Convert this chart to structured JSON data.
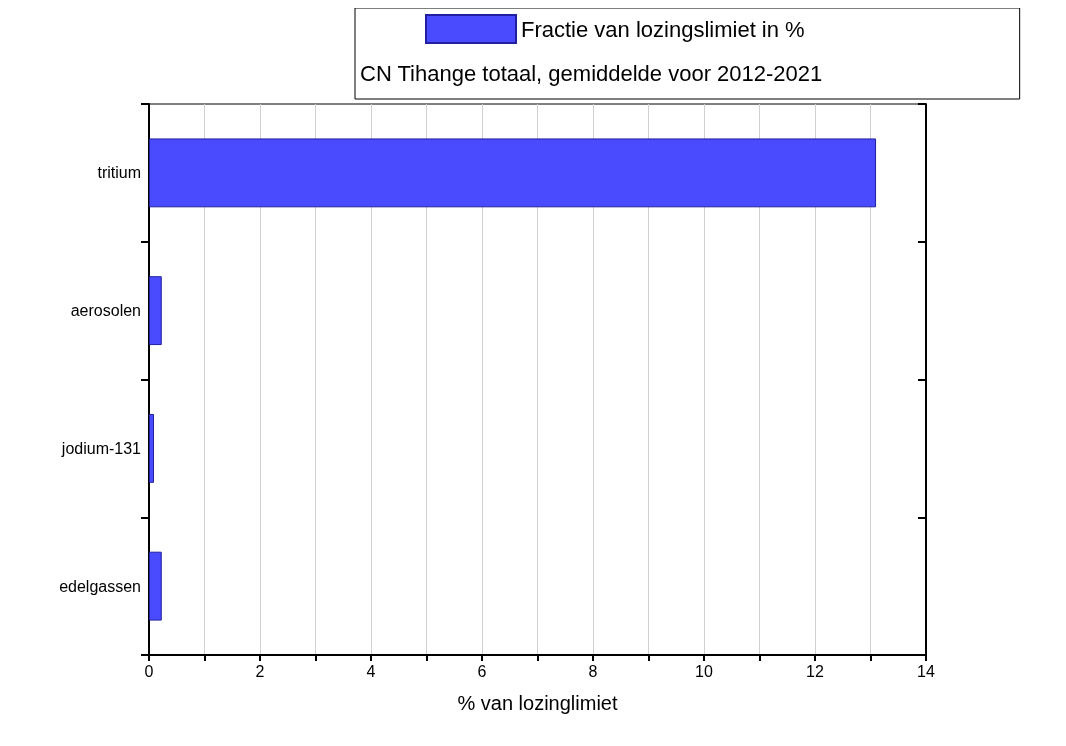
{
  "chart_data": {
    "type": "bar",
    "orientation": "horizontal",
    "categories": [
      "tritium",
      "aerosolen",
      "jodium-131",
      "edelgassen"
    ],
    "series": [
      {
        "name": "Fractie van lozingslimiet in %",
        "color": "#4a4aff",
        "values": [
          13.1,
          0.23,
          0.09,
          0.23
        ]
      }
    ],
    "legend_title": "CN Tihange totaal, gemiddelde voor 2012-2021",
    "legend": "top right",
    "xlabel": "% van lozinglimiet",
    "xlim": [
      0,
      14
    ],
    "xticks": [
      0,
      {
        "value": 1,
        "label": null
      },
      2,
      {
        "value": 3,
        "label": null
      },
      4,
      {
        "value": 5,
        "label": null
      },
      6,
      {
        "value": 7,
        "label": null
      },
      8,
      {
        "value": 9,
        "label": null
      },
      10,
      {
        "value": 11,
        "label": null
      },
      12,
      {
        "value": 13,
        "label": null
      },
      14
    ],
    "grid": "x"
  }
}
